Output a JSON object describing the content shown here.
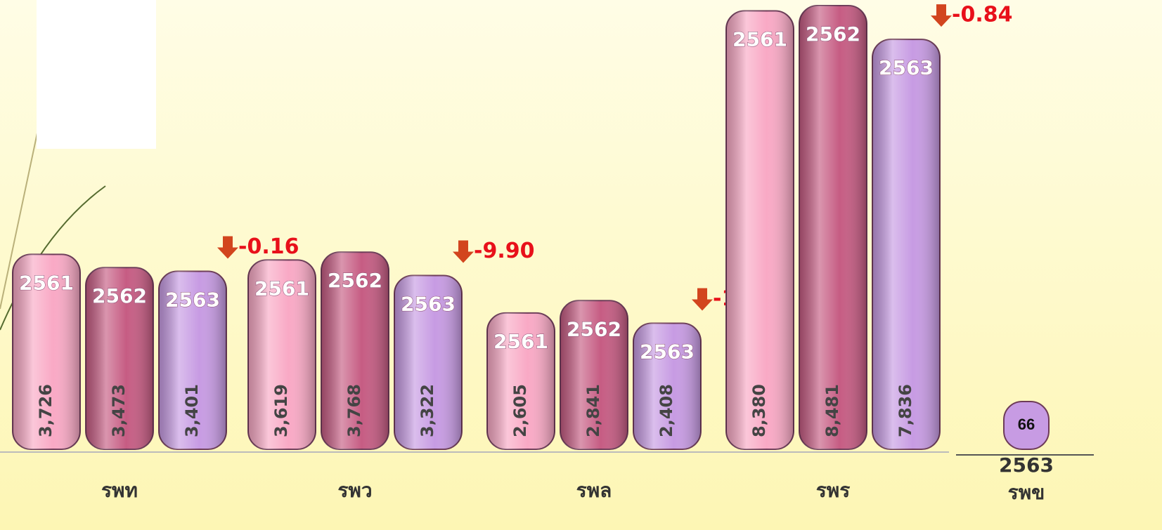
{
  "chart_data": [
    {
      "type": "bar",
      "categories": [
        "รพท",
        "รพว",
        "รพล",
        "รพร"
      ],
      "series": [
        {
          "name": "2561",
          "color": "#f9a9c5",
          "values": [
            3726,
            3619,
            2605,
            8380
          ],
          "value_labels": [
            "3,726",
            "3,619",
            "2,605",
            "8,380"
          ]
        },
        {
          "name": "2562",
          "color": "#c65c83",
          "values": [
            3473,
            3768,
            2841,
            8481
          ],
          "value_labels": [
            "3,473",
            "3,768",
            "2,841",
            "8,481"
          ]
        },
        {
          "name": "2563",
          "color": "#c79be3",
          "values": [
            3401,
            3322,
            2408,
            7836
          ],
          "value_labels": [
            "3,401",
            "3,322",
            "2,408",
            "7,836"
          ]
        }
      ],
      "changes": [
        "-0.16",
        "-9.90",
        "-13.71",
        "-0.84"
      ]
    },
    {
      "type": "bar",
      "categories": [
        "รพข"
      ],
      "series": [
        {
          "name": "2563",
          "color": "#c79be3",
          "values": [
            66
          ]
        }
      ]
    }
  ]
}
